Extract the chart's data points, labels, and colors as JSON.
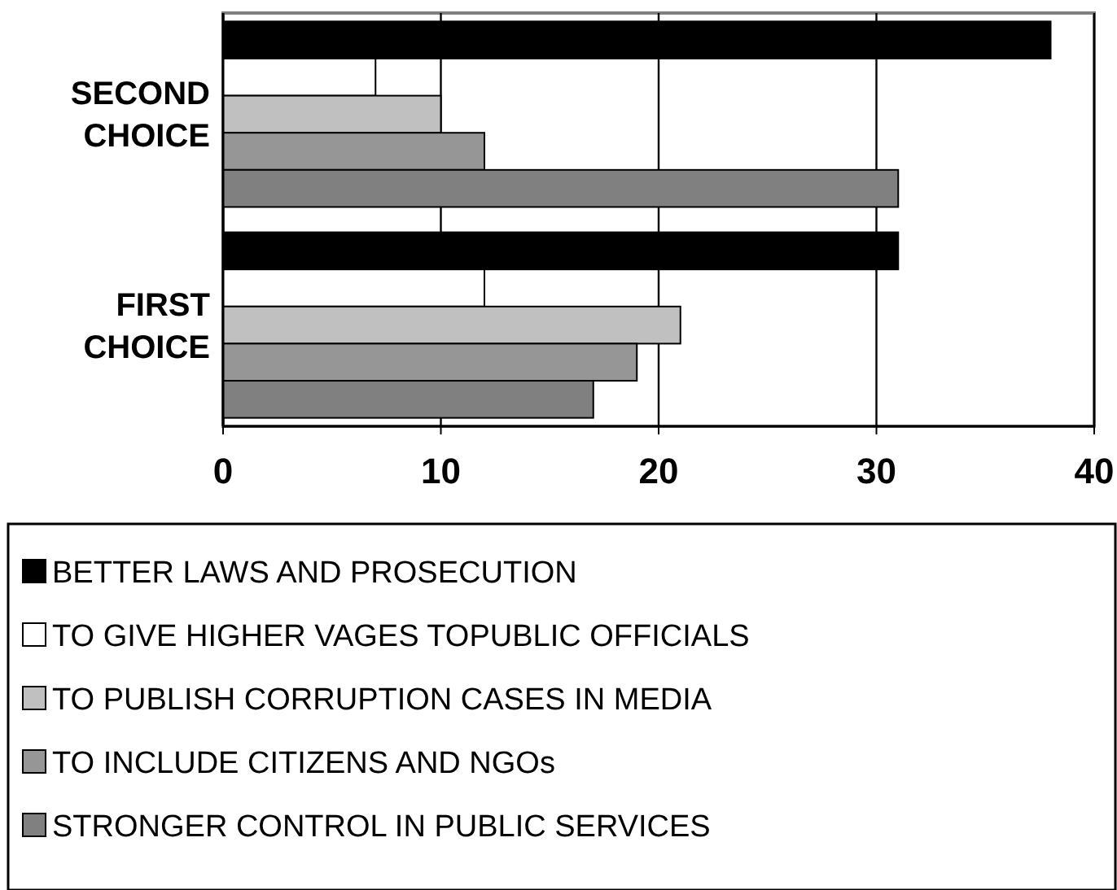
{
  "chart_data": {
    "type": "bar",
    "orientation": "horizontal",
    "categories": [
      "SECOND\nCHOICE",
      "FIRST\nCHOICE"
    ],
    "series": [
      {
        "name": "BETTER LAWS AND PROSECUTION",
        "color": "#000000",
        "values": [
          38,
          31
        ]
      },
      {
        "name": "TO GIVE HIGHER VAGES TOPUBLIC OFFICIALS",
        "color": "#ffffff",
        "values": [
          7,
          12
        ]
      },
      {
        "name": "TO PUBLISH CORRUPTION CASES IN MEDIA",
        "color": "#c0c0c0",
        "values": [
          10,
          21
        ]
      },
      {
        "name": "TO INCLUDE CITIZENS AND NGOs",
        "color": "#969696",
        "values": [
          12,
          19
        ]
      },
      {
        "name": "STRONGER CONTROL IN PUBLIC SERVICES",
        "color": "#808080",
        "values": [
          31,
          17
        ]
      }
    ],
    "xlim": [
      0,
      40
    ],
    "xticks": [
      0,
      10,
      20,
      30,
      40
    ],
    "grid": "x",
    "legend": "bottom"
  }
}
